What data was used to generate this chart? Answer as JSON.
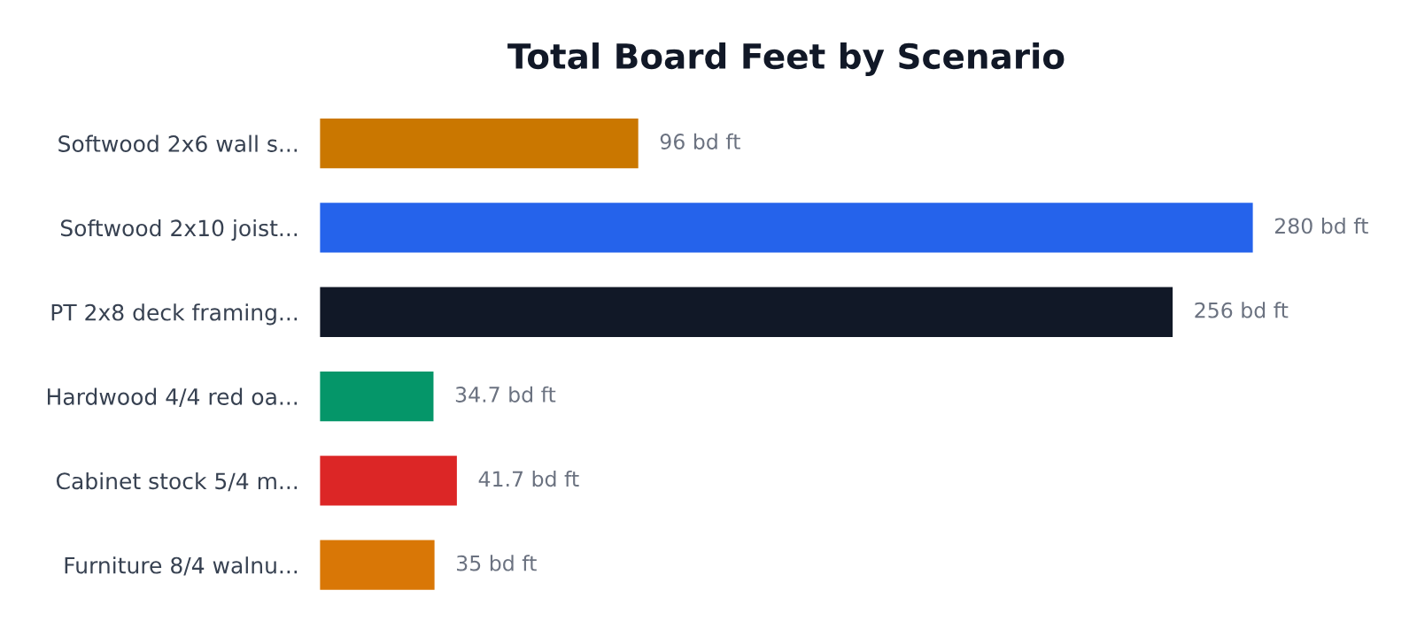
{
  "chart_data": {
    "type": "bar",
    "title": "Total Board Feet by Scenario",
    "orientation": "horizontal",
    "categories": [
      "Softwood 2x6 wall s...",
      "Softwood 2x10 joist...",
      "PT 2x8 deck framing...",
      "Hardwood 4/4 red oa...",
      "Cabinet stock 5/4 m...",
      "Furniture 8/4 walnu..."
    ],
    "values": [
      96,
      280,
      256,
      34.7,
      41.7,
      35
    ],
    "colors": [
      "#ca7700",
      "#2563eb",
      "#111827",
      "#059669",
      "#dc2626",
      "#d97706"
    ],
    "value_labels": [
      "96 bd ft",
      "280 bd ft",
      "256 bd ft",
      "34.7 bd ft",
      "41.7 bd ft",
      "35 bd ft"
    ],
    "grid": false,
    "legend": false
  }
}
